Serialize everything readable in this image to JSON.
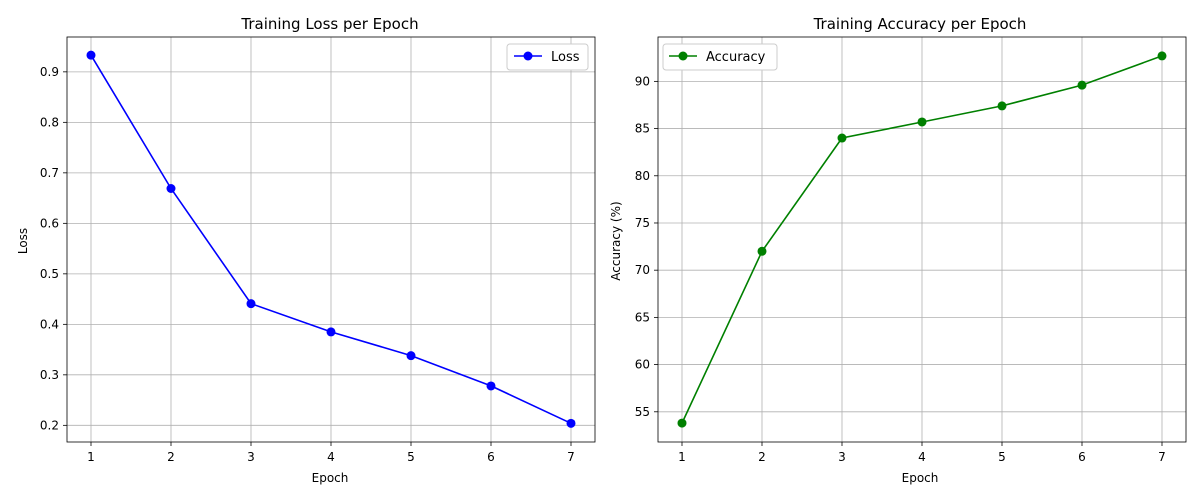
{
  "chart_data": [
    {
      "type": "line",
      "title": "Training Loss per Epoch",
      "xlabel": "Epoch",
      "ylabel": "Loss",
      "x": [
        1,
        2,
        3,
        4,
        5,
        6,
        7
      ],
      "xticks": [
        "1",
        "2",
        "3",
        "4",
        "5",
        "6",
        "7"
      ],
      "yticks": [
        "0.2",
        "0.3",
        "0.4",
        "0.5",
        "0.6",
        "0.7",
        "0.8",
        "0.9"
      ],
      "xlim": [
        0.7,
        7.3
      ],
      "ylim": [
        0.167,
        0.969
      ],
      "grid": true,
      "legend_position": "top-right",
      "series": [
        {
          "name": "Loss",
          "color": "#0000ff",
          "marker": "circle",
          "values": [
            0.933,
            0.669,
            0.441,
            0.385,
            0.338,
            0.278,
            0.204
          ]
        }
      ]
    },
    {
      "type": "line",
      "title": "Training Accuracy per Epoch",
      "xlabel": "Epoch",
      "ylabel": "Accuracy (%)",
      "x": [
        1,
        2,
        3,
        4,
        5,
        6,
        7
      ],
      "xticks": [
        "1",
        "2",
        "3",
        "4",
        "5",
        "6",
        "7"
      ],
      "yticks": [
        "55",
        "60",
        "65",
        "70",
        "75",
        "80",
        "85",
        "90"
      ],
      "xlim": [
        0.7,
        7.3
      ],
      "ylim": [
        51.8,
        94.7
      ],
      "grid": true,
      "legend_position": "top-left",
      "series": [
        {
          "name": "Accuracy",
          "color": "#008000",
          "marker": "circle",
          "values": [
            53.8,
            72.0,
            84.0,
            85.7,
            87.4,
            89.6,
            92.7
          ]
        }
      ]
    }
  ]
}
